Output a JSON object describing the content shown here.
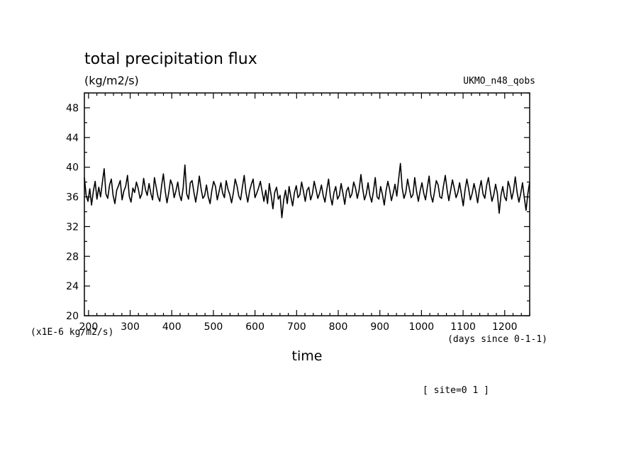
{
  "chart_data": {
    "type": "line",
    "title": "total precipitation flux",
    "units_label": "(kg/m2/s)",
    "dataset_label": "UKMO_n48_qobs",
    "xlabel": "time",
    "x_units": "(days since 0-1-1)",
    "y_scale_label": "(x1E-6 kg/m2/s)",
    "site_label": "[ site=0 1 ]",
    "xlim": [
      190,
      1260
    ],
    "ylim": [
      20,
      50
    ],
    "x_ticks": [
      200,
      300,
      400,
      500,
      600,
      700,
      800,
      900,
      1000,
      1100,
      1200
    ],
    "y_ticks": [
      20,
      24,
      28,
      32,
      36,
      40,
      44,
      48
    ],
    "series": [
      {
        "line_color": "#000000",
        "x_start": 190,
        "x_end": 1260,
        "y": [
          38.6,
          36.2,
          35.4,
          37.1,
          34.9,
          36.8,
          38.1,
          35.7,
          37.3,
          36.0,
          37.9,
          39.8,
          36.4,
          35.8,
          37.6,
          38.4,
          36.2,
          35.1,
          36.9,
          37.5,
          38.2,
          35.6,
          36.8,
          37.4,
          38.9,
          36.1,
          35.3,
          37.2,
          36.6,
          38.0,
          37.1,
          35.8,
          36.4,
          38.5,
          37.0,
          36.2,
          37.8,
          36.5,
          35.6,
          38.6,
          37.3,
          36.0,
          35.4,
          37.5,
          39.1,
          36.8,
          35.2,
          36.6,
          38.3,
          37.6,
          35.9,
          36.8,
          38.0,
          36.3,
          35.5,
          37.2,
          40.3,
          36.4,
          35.7,
          37.9,
          38.2,
          36.6,
          35.3,
          36.8,
          38.8,
          37.1,
          35.8,
          36.2,
          37.6,
          36.0,
          35.1,
          36.9,
          38.1,
          37.4,
          35.6,
          36.7,
          37.9,
          36.5,
          35.9,
          38.2,
          37.0,
          36.3,
          35.2,
          36.6,
          38.4,
          37.5,
          36.1,
          35.6,
          37.3,
          38.9,
          36.6,
          35.3,
          36.8,
          37.7,
          38.4,
          35.9,
          36.5,
          37.2,
          38.1,
          36.7,
          35.4,
          36.9,
          35.1,
          37.8,
          36.2,
          34.4,
          36.6,
          37.3,
          35.7,
          36.2,
          33.2,
          35.6,
          36.9,
          35.1,
          37.4,
          36.0,
          34.8,
          36.6,
          37.5,
          35.9,
          36.3,
          38.0,
          36.8,
          35.4,
          36.9,
          37.3,
          35.6,
          36.4,
          38.1,
          37.0,
          35.8,
          36.5,
          37.6,
          36.2,
          35.3,
          37.0,
          38.4,
          36.1,
          34.9,
          36.6,
          37.4,
          35.7,
          36.2,
          37.8,
          36.5,
          35.0,
          36.8,
          37.3,
          35.9,
          36.4,
          38.0,
          37.2,
          35.8,
          36.9,
          39.0,
          37.1,
          35.6,
          36.4,
          37.9,
          36.2,
          35.3,
          36.8,
          38.6,
          36.0,
          35.7,
          37.4,
          36.3,
          34.9,
          36.8,
          38.1,
          37.0,
          35.5,
          36.5,
          37.7,
          36.1,
          38.3,
          40.5,
          37.2,
          35.8,
          36.6,
          38.4,
          37.1,
          35.9,
          36.3,
          38.6,
          36.7,
          35.4,
          36.8,
          37.9,
          36.5,
          35.6,
          37.3,
          38.8,
          36.2,
          35.3,
          36.7,
          38.2,
          37.6,
          36.0,
          35.8,
          37.5,
          38.9,
          37.0,
          35.5,
          36.9,
          38.3,
          37.2,
          35.9,
          36.6,
          37.9,
          36.3,
          34.8,
          36.9,
          38.4,
          37.1,
          35.6,
          36.5,
          37.8,
          36.7,
          35.2,
          37.0,
          38.2,
          36.4,
          35.8,
          37.5,
          38.6,
          36.9,
          35.4,
          36.3,
          37.7,
          36.5,
          33.8,
          36.2,
          37.4,
          36.0,
          35.5,
          38.1,
          37.3,
          35.7,
          36.8,
          38.7,
          36.6,
          35.3,
          36.4,
          37.9,
          35.9,
          34.2,
          36.5,
          38.0
        ]
      }
    ]
  }
}
